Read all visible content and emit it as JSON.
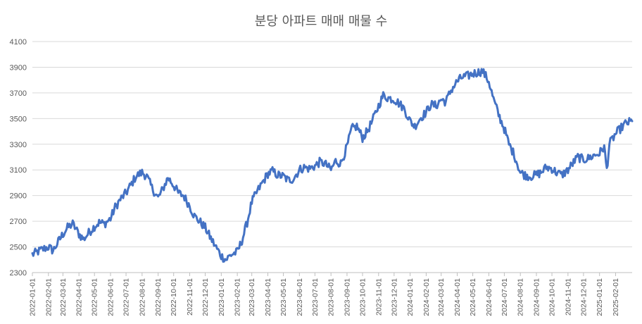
{
  "chart_data": {
    "type": "line",
    "title": "분당 아파트 매매 매물 수",
    "xlabel": "",
    "ylabel": "",
    "ylim": [
      2300,
      4100
    ],
    "yticks": [
      2300,
      2500,
      2700,
      2900,
      3100,
      3300,
      3500,
      3700,
      3900,
      4100
    ],
    "xticks": [
      "2022-01-01",
      "2022-02-01",
      "2022-03-01",
      "2022-04-01",
      "2022-05-01",
      "2022-06-01",
      "2022-07-01",
      "2022-08-01",
      "2022-09-01",
      "2022-10-01",
      "2022-11-01",
      "2022-12-01",
      "2023-01-01",
      "2023-02-01",
      "2023-03-01",
      "2023-04-01",
      "2023-05-01",
      "2023-06-01",
      "2023-07-01",
      "2023-08-01",
      "2023-09-01",
      "2023-10-01",
      "2023-11-01",
      "2023-12-01",
      "2024-01-01",
      "2024-02-01",
      "2024-03-01",
      "2024-04-01",
      "2024-05-01",
      "2024-06-01",
      "2024-07-01",
      "2024-08-01",
      "2024-09-01",
      "2024-10-01",
      "2024-11-01",
      "2024-12-01",
      "2025-01-01",
      "2025-02-01"
    ],
    "x_start": "2022-01-01",
    "x_end": "2025-03-05",
    "grid": true,
    "line_color": "#4472C4",
    "series": [
      {
        "name": "",
        "points": [
          [
            "2022-01-01",
            2440
          ],
          [
            "2022-01-10",
            2460
          ],
          [
            "2022-01-20",
            2480
          ],
          [
            "2022-02-01",
            2500
          ],
          [
            "2022-02-10",
            2470
          ],
          [
            "2022-02-20",
            2540
          ],
          [
            "2022-03-01",
            2600
          ],
          [
            "2022-03-10",
            2650
          ],
          [
            "2022-03-20",
            2680
          ],
          [
            "2022-04-01",
            2600
          ],
          [
            "2022-04-10",
            2560
          ],
          [
            "2022-04-20",
            2610
          ],
          [
            "2022-05-01",
            2660
          ],
          [
            "2022-05-10",
            2690
          ],
          [
            "2022-05-20",
            2680
          ],
          [
            "2022-06-01",
            2720
          ],
          [
            "2022-06-10",
            2810
          ],
          [
            "2022-06-20",
            2870
          ],
          [
            "2022-07-01",
            2920
          ],
          [
            "2022-07-10",
            2980
          ],
          [
            "2022-07-20",
            3050
          ],
          [
            "2022-08-01",
            3080
          ],
          [
            "2022-08-10",
            3050
          ],
          [
            "2022-08-20",
            2960
          ],
          [
            "2022-09-01",
            2880
          ],
          [
            "2022-09-10",
            2950
          ],
          [
            "2022-09-20",
            3040
          ],
          [
            "2022-10-01",
            2980
          ],
          [
            "2022-10-10",
            2920
          ],
          [
            "2022-10-20",
            2900
          ],
          [
            "2022-11-01",
            2820
          ],
          [
            "2022-11-10",
            2740
          ],
          [
            "2022-11-20",
            2700
          ],
          [
            "2022-12-01",
            2650
          ],
          [
            "2022-12-10",
            2580
          ],
          [
            "2022-12-20",
            2510
          ],
          [
            "2023-01-01",
            2430
          ],
          [
            "2023-01-10",
            2400
          ],
          [
            "2023-01-20",
            2440
          ],
          [
            "2023-02-01",
            2460
          ],
          [
            "2023-02-10",
            2550
          ],
          [
            "2023-02-20",
            2690
          ],
          [
            "2023-03-01",
            2850
          ],
          [
            "2023-03-10",
            2920
          ],
          [
            "2023-03-20",
            2990
          ],
          [
            "2023-04-01",
            3070
          ],
          [
            "2023-04-10",
            3090
          ],
          [
            "2023-04-20",
            3060
          ],
          [
            "2023-05-01",
            3050
          ],
          [
            "2023-05-10",
            3020
          ],
          [
            "2023-05-20",
            3030
          ],
          [
            "2023-06-01",
            3100
          ],
          [
            "2023-06-10",
            3120
          ],
          [
            "2023-06-20",
            3110
          ],
          [
            "2023-07-01",
            3130
          ],
          [
            "2023-07-10",
            3160
          ],
          [
            "2023-07-20",
            3150
          ],
          [
            "2023-08-01",
            3100
          ],
          [
            "2023-08-10",
            3170
          ],
          [
            "2023-08-20",
            3150
          ],
          [
            "2023-09-01",
            3280
          ],
          [
            "2023-09-10",
            3420
          ],
          [
            "2023-09-20",
            3440
          ],
          [
            "2023-10-01",
            3350
          ],
          [
            "2023-10-10",
            3400
          ],
          [
            "2023-10-20",
            3480
          ],
          [
            "2023-11-01",
            3600
          ],
          [
            "2023-11-10",
            3680
          ],
          [
            "2023-11-20",
            3660
          ],
          [
            "2023-12-01",
            3650
          ],
          [
            "2023-12-10",
            3620
          ],
          [
            "2023-12-20",
            3580
          ],
          [
            "2024-01-01",
            3480
          ],
          [
            "2024-01-10",
            3440
          ],
          [
            "2024-01-20",
            3500
          ],
          [
            "2024-02-01",
            3550
          ],
          [
            "2024-02-10",
            3610
          ],
          [
            "2024-02-20",
            3600
          ],
          [
            "2024-03-01",
            3650
          ],
          [
            "2024-03-10",
            3630
          ],
          [
            "2024-03-20",
            3720
          ],
          [
            "2024-04-01",
            3790
          ],
          [
            "2024-04-10",
            3820
          ],
          [
            "2024-04-20",
            3830
          ],
          [
            "2024-05-01",
            3850
          ],
          [
            "2024-05-10",
            3860
          ],
          [
            "2024-05-20",
            3870
          ],
          [
            "2024-06-01",
            3790
          ],
          [
            "2024-06-10",
            3650
          ],
          [
            "2024-06-20",
            3530
          ],
          [
            "2024-07-01",
            3420
          ],
          [
            "2024-07-10",
            3300
          ],
          [
            "2024-07-20",
            3220
          ],
          [
            "2024-08-01",
            3080
          ],
          [
            "2024-08-10",
            3060
          ],
          [
            "2024-08-20",
            3050
          ],
          [
            "2024-09-01",
            3060
          ],
          [
            "2024-09-10",
            3080
          ],
          [
            "2024-09-20",
            3120
          ],
          [
            "2024-10-01",
            3110
          ],
          [
            "2024-10-10",
            3080
          ],
          [
            "2024-10-20",
            3060
          ],
          [
            "2024-11-01",
            3100
          ],
          [
            "2024-11-10",
            3150
          ],
          [
            "2024-11-20",
            3200
          ],
          [
            "2024-12-01",
            3180
          ],
          [
            "2024-12-10",
            3190
          ],
          [
            "2024-12-20",
            3210
          ],
          [
            "2025-01-01",
            3230
          ],
          [
            "2025-01-10",
            3280
          ],
          [
            "2025-01-15",
            3100
          ],
          [
            "2025-01-20",
            3300
          ],
          [
            "2025-02-01",
            3380
          ],
          [
            "2025-02-10",
            3420
          ],
          [
            "2025-02-20",
            3460
          ],
          [
            "2025-03-05",
            3480
          ]
        ]
      }
    ]
  }
}
